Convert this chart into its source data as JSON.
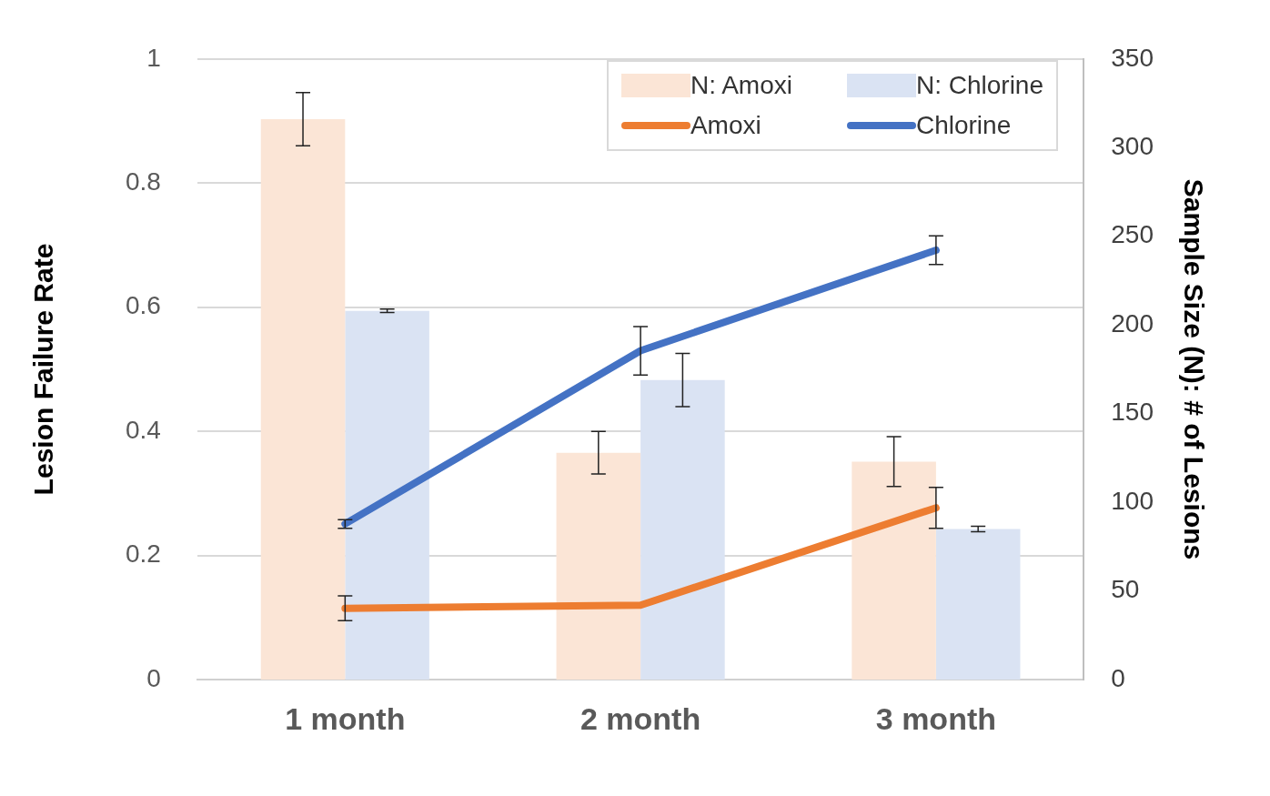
{
  "chart_data": {
    "type": "bar",
    "categories": [
      "1 month",
      "2 month",
      "3 month"
    ],
    "ylabel": "Lesion Failure Rate",
    "y2label": "Sample Size (N): # of Lesions",
    "ylim": [
      0,
      1
    ],
    "yticks": [
      0,
      0.2,
      0.4,
      0.6,
      0.8,
      1
    ],
    "y2lim": [
      0,
      350
    ],
    "y2ticks": [
      0,
      50,
      100,
      150,
      200,
      250,
      300,
      350
    ],
    "grid": "y",
    "legend": "top right",
    "marker": "none",
    "line_style": "solid",
    "series": [
      {
        "name": "N: Amoxi",
        "axis": "y2",
        "color": "#fbe5d6",
        "values": [
          316,
          128,
          123
        ],
        "errors": [
          15,
          12,
          14
        ]
      },
      {
        "name": "N: Chlorine",
        "axis": "y2",
        "color": "#dae3f3",
        "values": [
          208,
          169,
          85
        ],
        "errors": [
          1,
          15,
          1.5
        ]
      },
      {
        "name": "Amoxi",
        "type": "line",
        "color": "#ed7d31",
        "values": [
          0.115,
          0.12,
          0.277
        ],
        "errors": [
          0.02,
          null,
          0.033
        ]
      },
      {
        "name": "Chlorine",
        "type": "line",
        "color": "#4472c4",
        "values": [
          0.251,
          0.53,
          0.692
        ],
        "errors": [
          0.007,
          0.039,
          0.023
        ]
      }
    ]
  }
}
